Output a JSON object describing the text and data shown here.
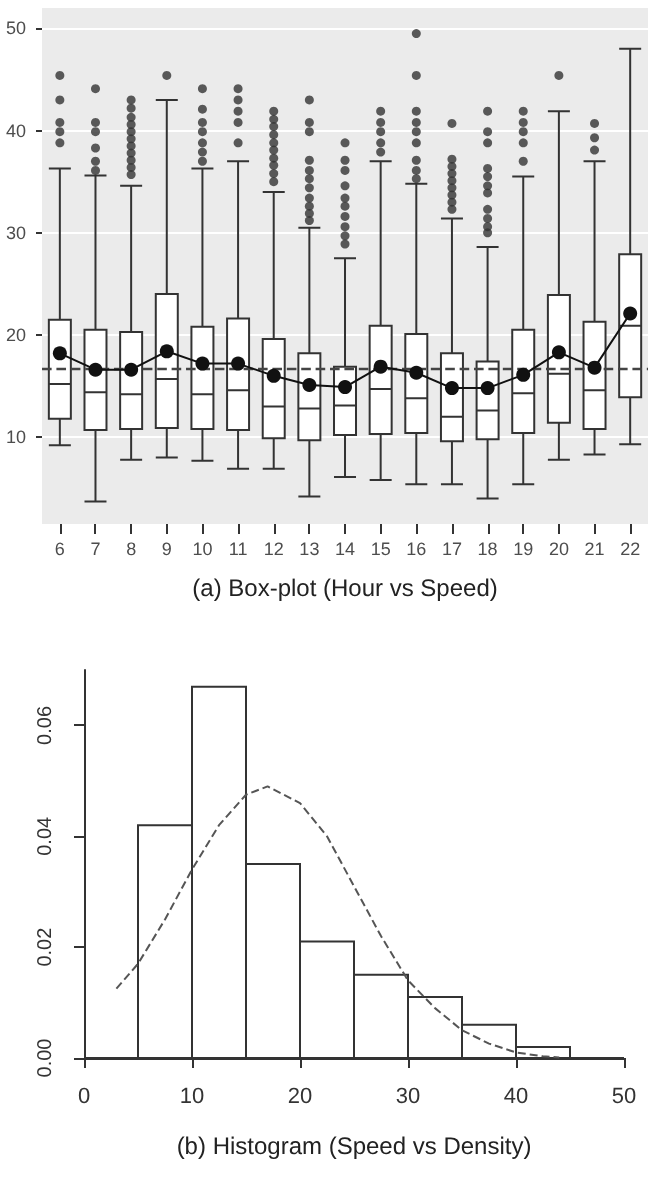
{
  "chart_data": [
    {
      "type": "box",
      "xlabel": "(a) Box-plot (Hour vs Speed)",
      "categories": [
        "6",
        "7",
        "8",
        "9",
        "10",
        "11",
        "12",
        "13",
        "14",
        "15",
        "16",
        "17",
        "18",
        "19",
        "20",
        "21",
        "22"
      ],
      "ylim": [
        1.5,
        52
      ],
      "yticks": [
        10,
        20,
        30,
        40,
        50
      ],
      "grid": "y",
      "series": [
        {
          "type": "box",
          "color": "#333333",
          "boxes": [
            {
              "low": 9.2,
              "q1": 11.8,
              "median": 15.2,
              "q3": 21.5,
              "high": 36.3,
              "outliers": [
                45.4,
                43,
                40.8,
                39.9,
                38.8
              ]
            },
            {
              "low": 3.7,
              "q1": 10.7,
              "median": 14.4,
              "q3": 20.5,
              "high": 35.6,
              "outliers": [
                44.1,
                40.8,
                39.9,
                38.3,
                37,
                36.1
              ]
            },
            {
              "low": 7.8,
              "q1": 10.8,
              "median": 14.2,
              "q3": 20.3,
              "high": 34.6,
              "outliers": [
                43,
                42.2,
                41.3,
                40.6,
                39.9,
                39.2,
                38.5,
                37.8,
                37.1,
                36.4,
                35.7
              ]
            },
            {
              "low": 8,
              "q1": 10.9,
              "median": 15.7,
              "q3": 24,
              "high": 43,
              "outliers": [
                45.4
              ]
            },
            {
              "low": 7.7,
              "q1": 10.8,
              "median": 14.2,
              "q3": 20.8,
              "high": 36.3,
              "outliers": [
                44.1,
                42.1,
                40.8,
                39.9,
                38.8,
                37.9,
                37
              ]
            },
            {
              "low": 6.9,
              "q1": 10.7,
              "median": 14.6,
              "q3": 21.6,
              "high": 37,
              "outliers": [
                44.1,
                43,
                41.9,
                40.8,
                38.8
              ]
            },
            {
              "low": 6.9,
              "q1": 9.9,
              "median": 13,
              "q3": 19.6,
              "high": 34,
              "outliers": [
                41.9,
                41.1,
                40.4,
                39.6,
                38.8,
                38.1,
                37.3,
                36.6,
                35.8,
                35
              ]
            },
            {
              "low": 4.2,
              "q1": 9.7,
              "median": 12.8,
              "q3": 18.2,
              "high": 30.5,
              "outliers": [
                43,
                40.8,
                39.9,
                37.1,
                36.1,
                35.3,
                34.4,
                33.4,
                32.6,
                31.9,
                31.2
              ]
            },
            {
              "low": 6.1,
              "q1": 10.2,
              "median": 13.1,
              "q3": 16.9,
              "high": 27.5,
              "outliers": [
                38.8,
                37.1,
                36.1,
                34.6,
                33.4,
                32.6,
                31.6,
                30.6,
                29.7,
                28.9
              ]
            },
            {
              "low": 5.8,
              "q1": 10.3,
              "median": 14.7,
              "q3": 20.9,
              "high": 37,
              "outliers": [
                41.9,
                40.8,
                39.9,
                38.8,
                37.9
              ]
            },
            {
              "low": 5.4,
              "q1": 10.4,
              "median": 13.8,
              "q3": 20.1,
              "high": 34.8,
              "outliers": [
                49.5,
                45.4,
                41.9,
                40.8,
                39.9,
                38.8,
                37.1,
                36.1,
                35.3
              ]
            },
            {
              "low": 5.4,
              "q1": 9.6,
              "median": 12,
              "q3": 18.2,
              "high": 31.4,
              "outliers": [
                40.7,
                37.2,
                36.5,
                35.8,
                35.1,
                34.4,
                33.7,
                33,
                32.3
              ]
            },
            {
              "low": 4,
              "q1": 9.8,
              "median": 12.6,
              "q3": 17.4,
              "high": 28.6,
              "outliers": [
                41.9,
                39.9,
                38.8,
                36.3,
                35.5,
                34.6,
                33.9,
                32.3,
                31.4,
                30.6,
                30
              ]
            },
            {
              "low": 5.4,
              "q1": 10.4,
              "median": 14.3,
              "q3": 20.5,
              "high": 35.5,
              "outliers": [
                41.9,
                40.8,
                39.9,
                38.8,
                37
              ]
            },
            {
              "low": 7.8,
              "q1": 11.4,
              "median": 16.2,
              "q3": 23.9,
              "high": 41.9,
              "outliers": [
                45.4
              ]
            },
            {
              "low": 8.3,
              "q1": 10.8,
              "median": 14.6,
              "q3": 21.3,
              "high": 37,
              "outliers": [
                40.7,
                39.3,
                38.1
              ]
            },
            {
              "low": 9.3,
              "q1": 13.9,
              "median": 20.9,
              "q3": 27.9,
              "high": 48
            }
          ]
        },
        {
          "type": "line",
          "color": "#111111",
          "marker": "circle",
          "x": [
            "6",
            "7",
            "8",
            "9",
            "10",
            "11",
            "12",
            "13",
            "14",
            "15",
            "16",
            "17",
            "18",
            "19",
            "20",
            "21",
            "22"
          ],
          "values": [
            18.2,
            16.6,
            16.6,
            18.4,
            17.2,
            17.2,
            16,
            15.1,
            14.9,
            16.9,
            16.3,
            14.8,
            14.8,
            16.1,
            18.3,
            16.8,
            22.1
          ]
        }
      ],
      "ref_lines": [
        {
          "axis": "y",
          "value": 16.8,
          "color": "#444444",
          "line_style": "dashed"
        }
      ]
    },
    {
      "type": "histogram",
      "xlabel": "(b) Histogram (Speed vs Density)",
      "bins": [
        0,
        5,
        10,
        15,
        20,
        25,
        30,
        35,
        40,
        45,
        50
      ],
      "values": [
        0,
        0.042,
        0.067,
        0.035,
        0.021,
        0.015,
        0.011,
        0.006,
        0.002,
        0
      ],
      "color": "#ffffff",
      "xlim": [
        0,
        50
      ],
      "xticks": [
        0,
        10,
        20,
        30,
        40,
        50
      ],
      "ylim": [
        0,
        0.07
      ],
      "yticks": [
        {
          "value": 0,
          "label": "0.00"
        },
        {
          "value": 0.02,
          "label": "0.02"
        },
        {
          "value": 0.04,
          "label": "0.04"
        },
        {
          "value": 0.06,
          "label": "0.06"
        }
      ],
      "series": [
        {
          "type": "line",
          "color": "#555555",
          "line_style": "dashed",
          "marker": "none",
          "x": [
            3,
            5,
            7.5,
            10,
            12.5,
            15,
            17,
            20,
            22.5,
            25,
            27.5,
            30,
            32.5,
            35,
            37.5,
            40,
            42.5,
            44
          ],
          "values": [
            0.0125,
            0.017,
            0.025,
            0.034,
            0.042,
            0.0475,
            0.049,
            0.046,
            0.04,
            0.031,
            0.022,
            0.014,
            0.009,
            0.005,
            0.0026,
            0.001,
            0.0003,
            0.0001
          ]
        }
      ]
    }
  ]
}
